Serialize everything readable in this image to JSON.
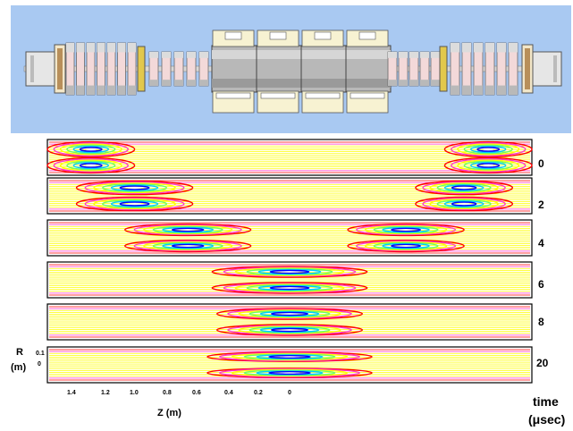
{
  "colors": {
    "device_bg": "#a9c9f2",
    "contour_levels": [
      "#ff0000",
      "#ff33cc",
      "#ffff00",
      "#66ff66",
      "#00ccff",
      "#0000ff"
    ]
  },
  "panels": [
    {
      "time": "0"
    },
    {
      "time": "2"
    },
    {
      "time": "4"
    },
    {
      "time": "6"
    },
    {
      "time": "8"
    },
    {
      "time": "20"
    }
  ],
  "axes": {
    "x_label": "Z (m)",
    "x_ticks": [
      "1.4",
      "1.2",
      "1.0",
      "0.8",
      "0.6",
      "0.4",
      "0.2",
      "0"
    ],
    "y_label_top": "R",
    "y_label_bottom": "(m)",
    "y_ticks": [
      "0.1",
      "0"
    ],
    "time_label_top": "time",
    "time_label_bottom": "(μsec)"
  }
}
